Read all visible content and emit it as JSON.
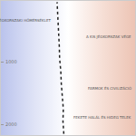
{
  "chart_data": {
    "type": "line",
    "x": [
      -0.25,
      -0.3,
      -0.28,
      -0.35,
      -0.4,
      -0.43,
      -0.5,
      -0.52,
      -0.55,
      -0.6,
      -0.62,
      -0.65
    ],
    "y": [
      2150,
      1950,
      1750,
      1550,
      1350,
      1150,
      950,
      750,
      550,
      350,
      150,
      50
    ],
    "color": "#222222",
    "line_style": "dotted",
    "xlim": [
      -4,
      4
    ],
    "ylim": [
      2170,
      30
    ],
    "yticks": [
      2000,
      1000
    ],
    "tick_labels": "y",
    "annotations": [
      {
        "text": "FEKETE HALÁL ÉS HIDEG TELEK",
        "y": 1885
      },
      {
        "text": "FARMOK ÉS CIVILIZÁCIÓ",
        "y": 1428
      },
      {
        "text": "A KIS JÉGKORSZAK VÉGE",
        "y": 600
      },
      {
        "text": "ÁTLAGOS JÉGKORSZAKI HŐMÉRSÉKLET",
        "y": 344
      }
    ]
  }
}
